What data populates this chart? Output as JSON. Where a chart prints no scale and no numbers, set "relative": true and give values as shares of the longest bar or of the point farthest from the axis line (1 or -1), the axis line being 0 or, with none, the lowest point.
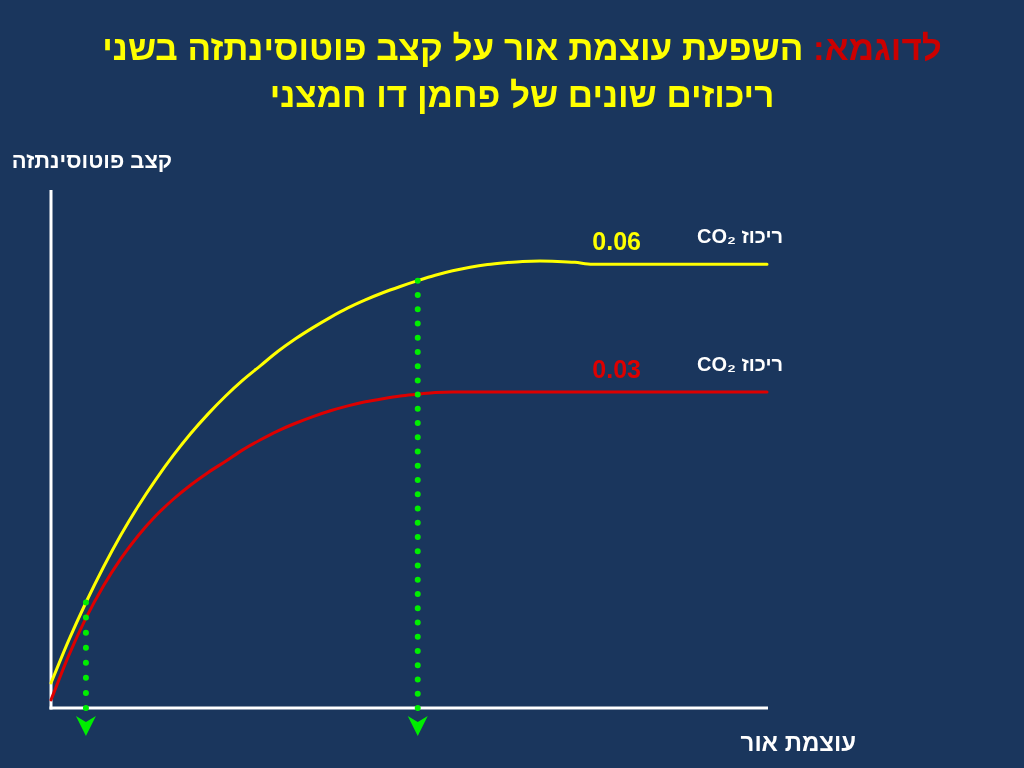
{
  "chart_data": {
    "type": "line",
    "title": "לדוגמא: השפעת עוצמת אור על קצב פוטוסינתזה בשני ריכוזים שונים של פחמן דו חמצני",
    "xlabel": "עוצמת אור",
    "ylabel": "קצב פוטוסינתזה",
    "relative": true,
    "categories": [
      null,
      null,
      null,
      null,
      null,
      null,
      null,
      null,
      null,
      null,
      null,
      null,
      null,
      null,
      null,
      null,
      null,
      null,
      null,
      null,
      null,
      null,
      null,
      null,
      null,
      null,
      null,
      null,
      null,
      null,
      null,
      null,
      null,
      null,
      null,
      null,
      null,
      null,
      null,
      null,
      null,
      null
    ],
    "series": [
      {
        "name": "0.06",
        "color": "#ffff00",
        "values": [
          0.056,
          0.15,
          0.236,
          0.315,
          0.387,
          0.452,
          0.511,
          0.565,
          0.614,
          0.658,
          0.698,
          0.734,
          0.766,
          0.798,
          0.826,
          0.851,
          0.874,
          0.895,
          0.913,
          0.929,
          0.943,
          0.956,
          0.968,
          0.978,
          0.986,
          0.992,
          0.996,
          0.999,
          1,
          0.999,
          0.997,
          0.993,
          0.993,
          0.993,
          0.993,
          0.993,
          0.993,
          0.993,
          0.993,
          0.993,
          0.993,
          0.993
        ]
      },
      {
        "name": "0.03",
        "color": "#dd0000",
        "values": [
          0.018,
          0.116,
          0.201,
          0.273,
          0.334,
          0.386,
          0.43,
          0.467,
          0.499,
          0.527,
          0.552,
          0.578,
          0.6,
          0.62,
          0.637,
          0.652,
          0.665,
          0.676,
          0.685,
          0.692,
          0.698,
          0.702,
          0.706,
          0.707,
          0.707,
          0.707,
          0.707,
          0.707,
          0.707,
          0.707,
          0.707,
          0.707,
          0.707,
          0.707,
          0.707,
          0.707,
          0.707,
          0.707,
          0.707,
          0.707,
          0.707,
          0.707
        ]
      }
    ],
    "annotations": [
      {
        "text": "ריכוז CO₂",
        "y": 0.993
      },
      {
        "text": "ריכוז CO₂",
        "y": 0.707
      }
    ]
  }
}
